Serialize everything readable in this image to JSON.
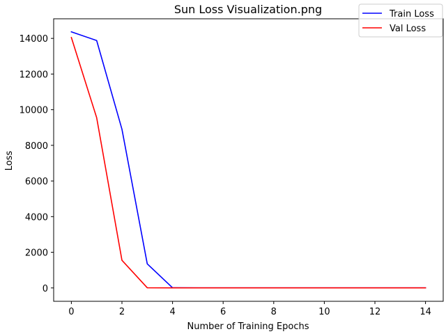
{
  "chart_data": {
    "type": "line",
    "title": "Sun Loss Visualization.png",
    "xlabel": "Number of Training Epochs",
    "ylabel": "Loss",
    "xlim": [
      -0.7,
      14.7
    ],
    "ylim": [
      -750,
      15100
    ],
    "xticks": [
      0,
      2,
      4,
      6,
      8,
      10,
      12,
      14
    ],
    "yticks": [
      0,
      2000,
      4000,
      6000,
      8000,
      10000,
      12000,
      14000
    ],
    "grid": false,
    "legend_position": "top-right",
    "x": [
      0,
      1,
      2,
      3,
      4,
      5,
      6,
      7,
      8,
      9,
      10,
      11,
      12,
      13,
      14
    ],
    "series": [
      {
        "name": "Train Loss",
        "color": "#0000ff",
        "values": [
          14370,
          13880,
          8900,
          1350,
          10,
          5,
          5,
          5,
          5,
          5,
          5,
          5,
          5,
          5,
          5
        ]
      },
      {
        "name": "Val Loss",
        "color": "#ff0000",
        "values": [
          14050,
          9550,
          1550,
          10,
          5,
          5,
          5,
          5,
          5,
          5,
          5,
          5,
          5,
          5,
          5
        ]
      }
    ]
  }
}
